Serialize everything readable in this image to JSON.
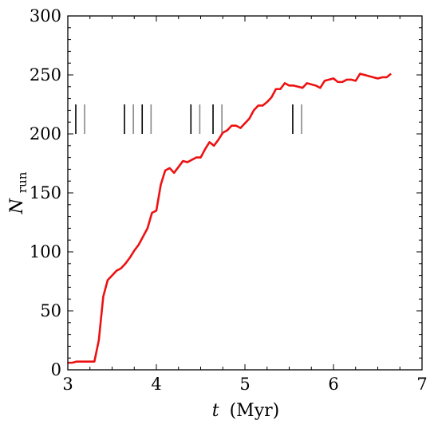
{
  "chart_data": {
    "type": "line",
    "xlim": [
      3,
      7
    ],
    "ylim": [
      0,
      300
    ],
    "xticks": [
      3,
      4,
      5,
      6,
      7
    ],
    "yticks": [
      0,
      50,
      100,
      150,
      200,
      250,
      300
    ],
    "xlabel": {
      "var": "t",
      "unit": "(Myr)"
    },
    "ylabel": {
      "var": "N",
      "sub": "run"
    },
    "grid": false,
    "line_color": "#ee1111",
    "series": [
      {
        "x": [
          3.0,
          3.05,
          3.1,
          3.15,
          3.2,
          3.25,
          3.3,
          3.35,
          3.4,
          3.45,
          3.5,
          3.55,
          3.6,
          3.65,
          3.7,
          3.75,
          3.8,
          3.85,
          3.9,
          3.95,
          4.0,
          4.05,
          4.1,
          4.15,
          4.2,
          4.25,
          4.3,
          4.35,
          4.4,
          4.45,
          4.5,
          4.55,
          4.6,
          4.65,
          4.7,
          4.75,
          4.8,
          4.85,
          4.9,
          4.95,
          5.0,
          5.05,
          5.1,
          5.15,
          5.2,
          5.25,
          5.3,
          5.35,
          5.4,
          5.45,
          5.5,
          5.55,
          5.6,
          5.65,
          5.7,
          5.75,
          5.8,
          5.85,
          5.9,
          5.95,
          6.0,
          6.05,
          6.1,
          6.15,
          6.2,
          6.25,
          6.3,
          6.35,
          6.4,
          6.45,
          6.5,
          6.55,
          6.6,
          6.65
        ],
        "y": [
          6,
          6,
          7,
          7,
          7,
          7,
          7,
          25,
          62,
          76,
          80,
          84,
          86,
          90,
          95,
          101,
          106,
          113,
          120,
          133,
          135,
          157,
          169,
          171,
          167,
          172,
          177,
          176,
          178,
          180,
          180,
          187,
          193,
          190,
          195,
          201,
          203,
          207,
          207,
          205,
          209,
          213,
          220,
          224,
          224,
          227,
          231,
          238,
          238,
          243,
          241,
          241,
          240,
          239,
          243,
          242,
          241,
          239,
          245,
          246,
          247,
          244,
          244,
          246,
          246,
          245,
          251,
          250,
          249,
          248,
          247,
          248,
          248,
          251
        ]
      }
    ],
    "vlines": [
      {
        "x": 3.09,
        "color": "#000000"
      },
      {
        "x": 3.19,
        "color": "#888888"
      },
      {
        "x": 3.64,
        "color": "#000000"
      },
      {
        "x": 3.74,
        "color": "#888888"
      },
      {
        "x": 3.84,
        "color": "#000000"
      },
      {
        "x": 3.94,
        "color": "#888888"
      },
      {
        "x": 4.39,
        "color": "#000000"
      },
      {
        "x": 4.49,
        "color": "#888888"
      },
      {
        "x": 4.64,
        "color": "#000000"
      },
      {
        "x": 4.74,
        "color": "#888888"
      },
      {
        "x": 5.54,
        "color": "#000000"
      },
      {
        "x": 5.64,
        "color": "#888888"
      }
    ],
    "vlines_yrange": [
      200,
      225
    ]
  }
}
